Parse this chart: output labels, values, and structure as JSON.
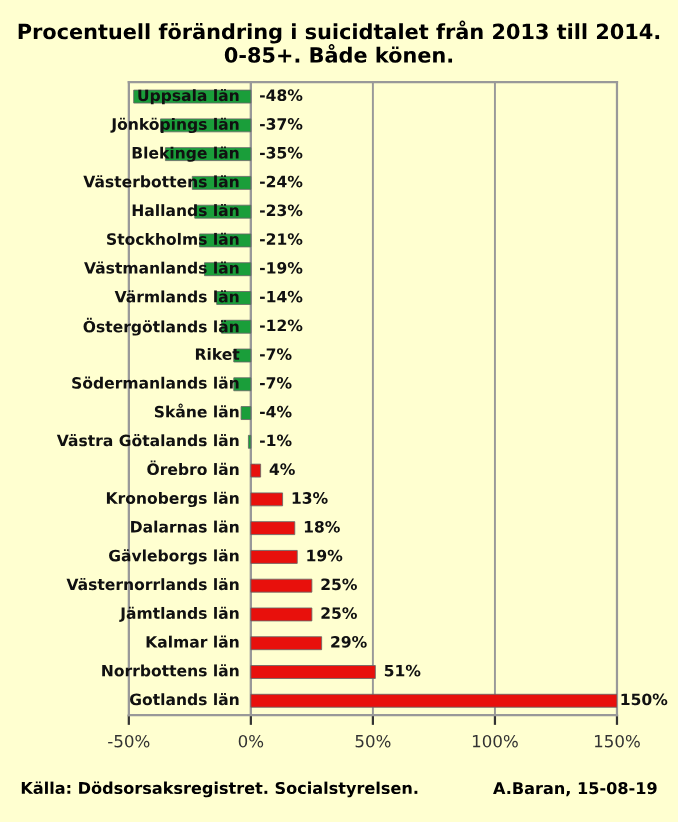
{
  "chart_data": {
    "type": "bar",
    "orientation": "horizontal",
    "title": "Procentuell förändring i suicidtalet från 2013 till 2014. 0-85+. Både könen.",
    "categories": [
      "Uppsala län",
      "Jönköpings län",
      "Blekinge län",
      "Västerbottens län",
      "Hallands län",
      "Stockholms län",
      "Västmanlands län",
      "Värmlands län",
      "Östergötlands län",
      "Riket",
      "Södermanlands län",
      "Skåne län",
      "Västra Götalands län",
      "Örebro län",
      "Kronobergs län",
      "Dalarnas län",
      "Gävleborgs län",
      "Västernorrlands län",
      "Jämtlands län",
      "Kalmar län",
      "Norrbottens län",
      "Gotlands län"
    ],
    "values": [
      -48,
      -37,
      -35,
      -24,
      -23,
      -21,
      -19,
      -14,
      -12,
      -7,
      -7,
      -4,
      -1,
      4,
      13,
      18,
      19,
      25,
      25,
      29,
      51,
      150
    ],
    "colors": [
      "#1a9e3a",
      "#1a9e3a",
      "#1a9e3a",
      "#1a9e3a",
      "#1a9e3a",
      "#1a9e3a",
      "#1a9e3a",
      "#1a9e3a",
      "#1a9e3a",
      "#1a9e3a",
      "#1a9e3a",
      "#1a9e3a",
      "#1a9e3a",
      "#e8100c",
      "#e8100c",
      "#e8100c",
      "#e8100c",
      "#e8100c",
      "#e8100c",
      "#e8100c",
      "#e8100c",
      "#e8100c"
    ],
    "value_labels": [
      "-48%",
      "-37%",
      "-35%",
      "-24%",
      "-23%",
      "-21%",
      "-19%",
      "-14%",
      "-12%",
      "-7%",
      "-7%",
      "-4%",
      "-1%",
      "4%",
      "13%",
      "18%",
      "19%",
      "25%",
      "25%",
      "29%",
      "51%",
      "150%"
    ],
    "xlim": [
      -50,
      150
    ],
    "xticks": [
      {
        "value": -50,
        "label": "-50%"
      },
      {
        "value": 0,
        "label": "0%"
      },
      {
        "value": 50,
        "label": "50%"
      },
      {
        "value": 100,
        "label": "100%"
      },
      {
        "value": 150,
        "label": "150%"
      }
    ],
    "grid": "x",
    "annotations": [
      "Källa: Dödsorsaksregistret. Socialstyrelsen.",
      "A.Baran, 15-08-19"
    ]
  }
}
